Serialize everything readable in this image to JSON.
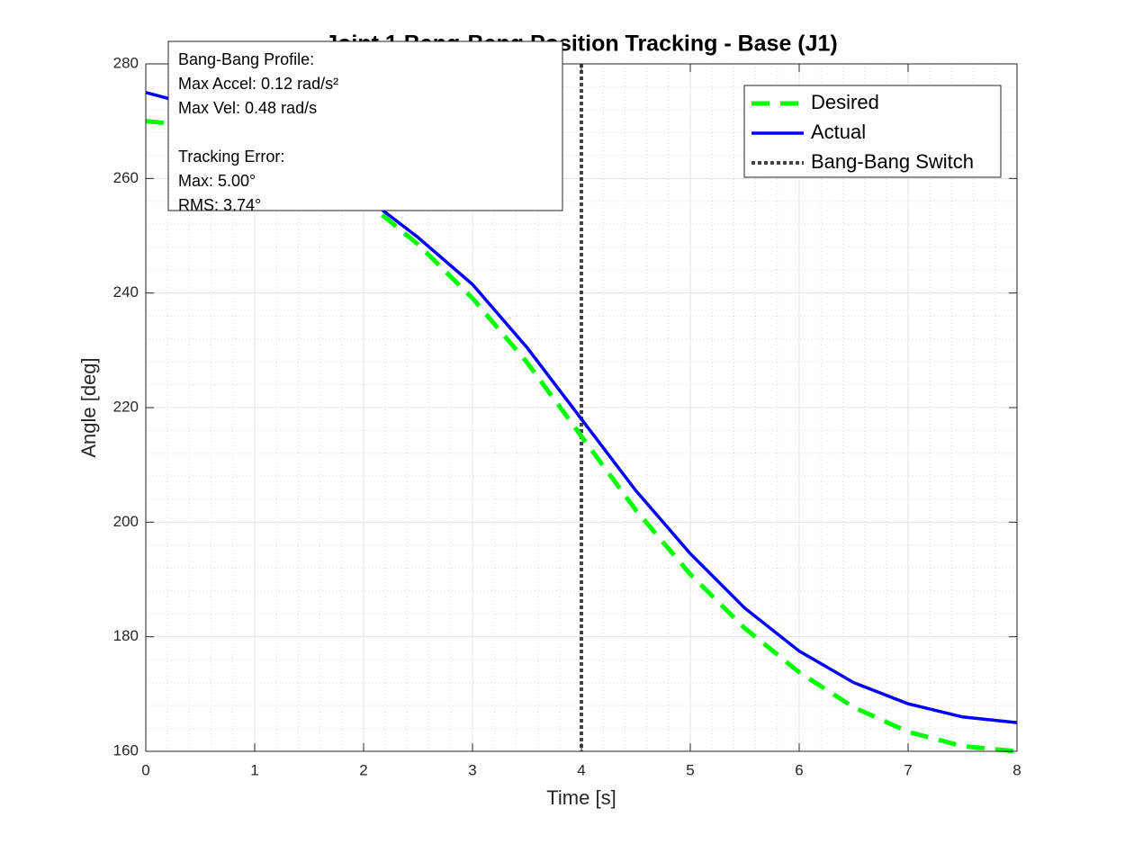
{
  "chart_data": {
    "type": "line",
    "title": "Joint 1 Bang-Bang Position Tracking - Base (J1)",
    "x_label": "Time [s]",
    "y_label": "Angle [deg]",
    "x": [
      0,
      0.5,
      1,
      1.5,
      2,
      2.5,
      3,
      3.5,
      4,
      4.5,
      5,
      5.5,
      6,
      6.5,
      7,
      7.5,
      8
    ],
    "series": [
      {
        "name": "Desired",
        "color": "#00ff00",
        "style": "dashed",
        "values": [
          270,
          269.1,
          266.6,
          262.3,
          256.3,
          248.5,
          239.1,
          227.9,
          215,
          202.1,
          190.9,
          181.5,
          173.8,
          167.7,
          163.4,
          160.9,
          160
        ]
      },
      {
        "name": "Actual",
        "color": "#0000ff",
        "style": "solid",
        "values": [
          275,
          272.5,
          268.5,
          263,
          257,
          249.7,
          241.5,
          230.5,
          218,
          205.5,
          194.5,
          185,
          177.5,
          172,
          168.3,
          166,
          165
        ]
      }
    ],
    "vlines": [
      {
        "name": "Bang-Bang Switch",
        "color": "#444444",
        "style": "dotted",
        "x": 4
      }
    ],
    "xlim": [
      0,
      8
    ],
    "xticks": [
      0,
      1,
      2,
      3,
      4,
      5,
      6,
      7,
      8
    ],
    "ylim": [
      160,
      280
    ],
    "yticks": [
      160,
      180,
      200,
      220,
      240,
      260,
      280
    ],
    "grid": true,
    "minor_grid": true,
    "legend": "top-right",
    "annotation": [
      [
        "Bang-Bang Profile:",
        "Max Accel: 0.12 rad/s²",
        "Max Vel: 0.48 rad/s"
      ],
      [
        "Tracking Error:",
        "Max: 5.00°",
        "RMS: 3.74°"
      ]
    ]
  }
}
